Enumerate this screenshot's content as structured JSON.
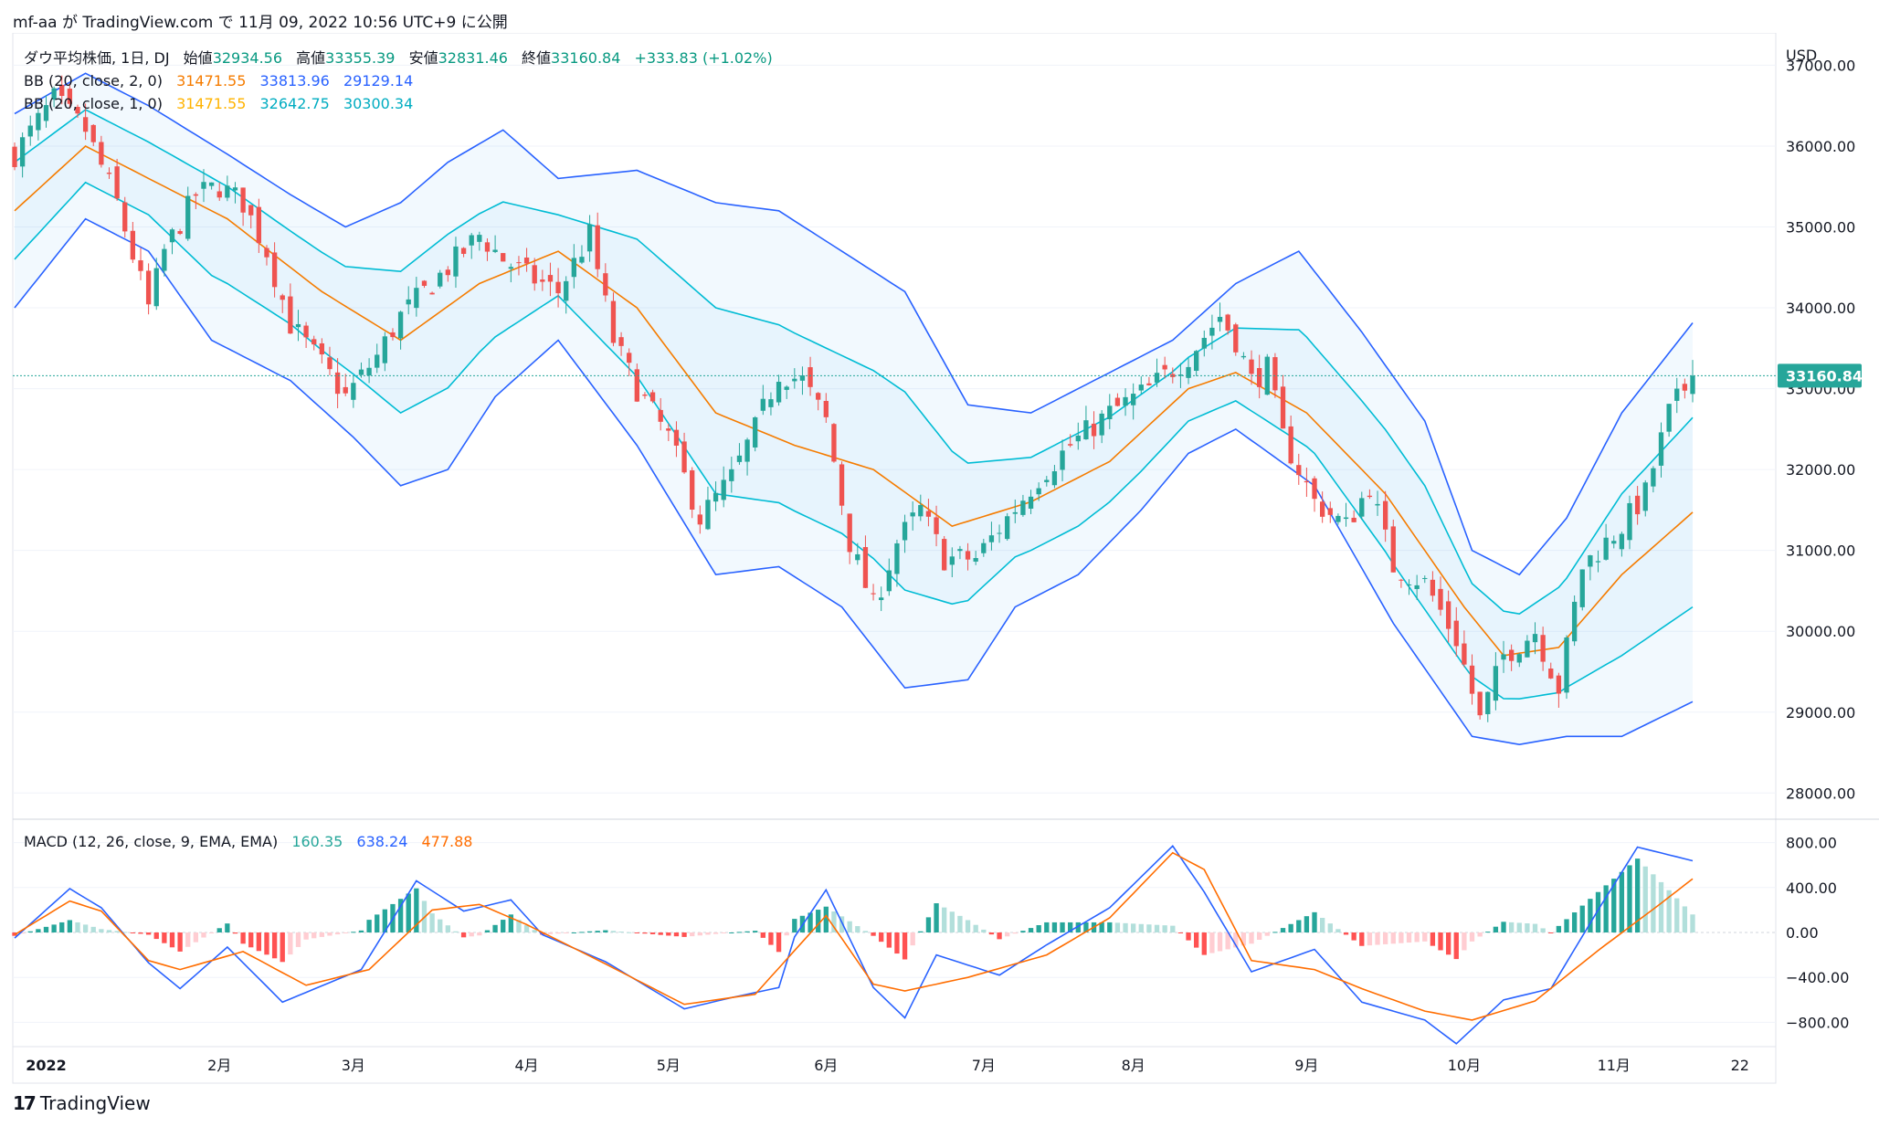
{
  "header": {
    "text": "mf-aa が TradingView.com で 11月 09, 2022 10:56 UTC+9 に公開"
  },
  "footer": {
    "brand": "TradingView"
  },
  "colors": {
    "up": "#26a69a",
    "down": "#ef5350",
    "bb2": "#2962ff",
    "bb1": "#00bcd4",
    "basis": "#f57c00",
    "macd": "#2962ff",
    "signal": "#ff6d00",
    "hist_up_strong": "#26a69a",
    "hist_up_weak": "#b2dfdb",
    "hist_down_strong": "#ff5252",
    "hist_down_weak": "#ffcdd2"
  },
  "legend": {
    "title": "ダウ平均株価, 1日, DJ",
    "open_label": "始値",
    "open": "32934.56",
    "high_label": "高値",
    "high": "33355.39",
    "low_label": "安値",
    "low": "32831.46",
    "close_label": "終値",
    "close": "33160.84",
    "change": "+333.83 (+1.02%)",
    "bb2_label": "BB (20, close, 2, 0)",
    "bb2_basis": "31471.55",
    "bb2_upper": "33813.96",
    "bb2_lower": "29129.14",
    "bb1_label": "BB (20, close, 1, 0)",
    "bb1_basis": "31471.55",
    "bb1_upper": "32642.75",
    "bb1_lower": "30300.34",
    "macd_label": "MACD (12, 26, close, 9, EMA, EMA)",
    "macd_hist": "160.35",
    "macd_line": "638.24",
    "macd_signal": "477.88"
  },
  "price_axis": {
    "currency": "USD",
    "ticks": [
      "37000.00",
      "36000.00",
      "35000.00",
      "34000.00",
      "33000.00",
      "32000.00",
      "31000.00",
      "30000.00",
      "29000.00",
      "28000.00"
    ],
    "last_price": "33160.84"
  },
  "macd_axis": {
    "ticks": [
      "800.00",
      "400.00",
      "0.00",
      "−400.00",
      "−800.00"
    ]
  },
  "time_axis": {
    "labels": [
      "2022",
      "2月",
      "3月",
      "4月",
      "5月",
      "6月",
      "7月",
      "8月",
      "9月",
      "10月",
      "11月",
      "22"
    ]
  },
  "chart_data": {
    "type": "candlestick",
    "symbol": "DJ",
    "interval": "1D",
    "price_range": [
      27800,
      37400
    ],
    "close_path": [
      [
        1,
        35900
      ],
      [
        6,
        36580
      ],
      [
        10,
        36200
      ],
      [
        14,
        35300
      ],
      [
        18,
        34000
      ],
      [
        20,
        34700
      ],
      [
        24,
        35400
      ],
      [
        27,
        35500
      ],
      [
        30,
        35300
      ],
      [
        33,
        34700
      ],
      [
        36,
        33800
      ],
      [
        40,
        33300
      ],
      [
        43,
        32900
      ],
      [
        47,
        33400
      ],
      [
        50,
        33900
      ],
      [
        55,
        34400
      ],
      [
        60,
        34900
      ],
      [
        63,
        34600
      ],
      [
        66,
        34400
      ],
      [
        70,
        34200
      ],
      [
        74,
        34900
      ],
      [
        77,
        33600
      ],
      [
        80,
        33000
      ],
      [
        84,
        32400
      ],
      [
        88,
        31400
      ],
      [
        92,
        31900
      ],
      [
        95,
        32500
      ],
      [
        98,
        33200
      ],
      [
        101,
        33100
      ],
      [
        104,
        32600
      ],
      [
        107,
        31100
      ],
      [
        110,
        30300
      ],
      [
        113,
        31100
      ],
      [
        116,
        31500
      ],
      [
        119,
        30900
      ],
      [
        123,
        30900
      ],
      [
        127,
        31400
      ],
      [
        131,
        31900
      ],
      [
        135,
        32300
      ],
      [
        140,
        32700
      ],
      [
        145,
        33000
      ],
      [
        150,
        33400
      ],
      [
        154,
        33900
      ],
      [
        156,
        33600
      ],
      [
        158,
        33100
      ],
      [
        160,
        33250
      ],
      [
        162,
        32400
      ],
      [
        166,
        31600
      ],
      [
        170,
        31300
      ],
      [
        173,
        31800
      ],
      [
        176,
        30800
      ],
      [
        180,
        30600
      ],
      [
        184,
        29900
      ],
      [
        187,
        28900
      ],
      [
        190,
        29700
      ],
      [
        194,
        30000
      ],
      [
        197,
        29300
      ],
      [
        200,
        30800
      ],
      [
        205,
        31300
      ],
      [
        208,
        31700
      ],
      [
        211,
        32700
      ],
      [
        214,
        33160.84
      ]
    ],
    "bb_basis_path": [
      [
        1,
        35200
      ],
      [
        10,
        36000
      ],
      [
        18,
        35600
      ],
      [
        28,
        35100
      ],
      [
        40,
        34200
      ],
      [
        50,
        33600
      ],
      [
        60,
        34300
      ],
      [
        70,
        34700
      ],
      [
        80,
        34000
      ],
      [
        90,
        32700
      ],
      [
        100,
        32300
      ],
      [
        110,
        32000
      ],
      [
        120,
        31300
      ],
      [
        130,
        31600
      ],
      [
        140,
        32100
      ],
      [
        150,
        33000
      ],
      [
        156,
        33200
      ],
      [
        165,
        32700
      ],
      [
        175,
        31700
      ],
      [
        185,
        30300
      ],
      [
        190,
        29700
      ],
      [
        197,
        29800
      ],
      [
        205,
        30700
      ],
      [
        214,
        31471.55
      ]
    ],
    "bb_k2_upper_path": [
      [
        1,
        36400
      ],
      [
        10,
        36900
      ],
      [
        18,
        36500
      ],
      [
        28,
        35900
      ],
      [
        36,
        35400
      ],
      [
        43,
        35000
      ],
      [
        50,
        35300
      ],
      [
        56,
        35800
      ],
      [
        63,
        36200
      ],
      [
        70,
        35600
      ],
      [
        80,
        35700
      ],
      [
        90,
        35300
      ],
      [
        98,
        35200
      ],
      [
        106,
        34700
      ],
      [
        114,
        34200
      ],
      [
        122,
        32800
      ],
      [
        130,
        32700
      ],
      [
        138,
        33100
      ],
      [
        148,
        33600
      ],
      [
        156,
        34300
      ],
      [
        164,
        34700
      ],
      [
        172,
        33700
      ],
      [
        180,
        32600
      ],
      [
        186,
        31000
      ],
      [
        192,
        30700
      ],
      [
        198,
        31400
      ],
      [
        205,
        32700
      ],
      [
        214,
        33813.96
      ]
    ],
    "bb_k2_lower_path": [
      [
        1,
        34000
      ],
      [
        10,
        35100
      ],
      [
        18,
        34700
      ],
      [
        26,
        33600
      ],
      [
        36,
        33100
      ],
      [
        44,
        32400
      ],
      [
        50,
        31800
      ],
      [
        56,
        32000
      ],
      [
        62,
        32900
      ],
      [
        70,
        33600
      ],
      [
        80,
        32300
      ],
      [
        90,
        30700
      ],
      [
        98,
        30800
      ],
      [
        106,
        30300
      ],
      [
        114,
        29300
      ],
      [
        122,
        29400
      ],
      [
        128,
        30300
      ],
      [
        136,
        30700
      ],
      [
        144,
        31500
      ],
      [
        150,
        32200
      ],
      [
        156,
        32500
      ],
      [
        166,
        31800
      ],
      [
        176,
        30100
      ],
      [
        186,
        28700
      ],
      [
        192,
        28600
      ],
      [
        198,
        28700
      ],
      [
        205,
        28700
      ],
      [
        214,
        29129.14
      ]
    ],
    "macd_range": [
      -1000,
      1000
    ],
    "macd_path": [
      [
        1,
        -50
      ],
      [
        8,
        390
      ],
      [
        12,
        220
      ],
      [
        18,
        -270
      ],
      [
        22,
        -500
      ],
      [
        28,
        -130
      ],
      [
        35,
        -620
      ],
      [
        45,
        -330
      ],
      [
        52,
        460
      ],
      [
        58,
        190
      ],
      [
        64,
        290
      ],
      [
        68,
        -20
      ],
      [
        76,
        -260
      ],
      [
        86,
        -680
      ],
      [
        92,
        -580
      ],
      [
        98,
        -490
      ],
      [
        100,
        -40
      ],
      [
        104,
        380
      ],
      [
        110,
        -490
      ],
      [
        114,
        -760
      ],
      [
        118,
        -200
      ],
      [
        126,
        -380
      ],
      [
        132,
        -110
      ],
      [
        140,
        220
      ],
      [
        148,
        770
      ],
      [
        152,
        360
      ],
      [
        158,
        -350
      ],
      [
        166,
        -150
      ],
      [
        172,
        -620
      ],
      [
        180,
        -780
      ],
      [
        184,
        -990
      ],
      [
        190,
        -600
      ],
      [
        196,
        -500
      ],
      [
        202,
        200
      ],
      [
        207,
        760
      ],
      [
        214,
        638.24
      ]
    ],
    "signal_path": [
      [
        1,
        -20
      ],
      [
        8,
        280
      ],
      [
        12,
        190
      ],
      [
        18,
        -250
      ],
      [
        22,
        -330
      ],
      [
        30,
        -170
      ],
      [
        38,
        -470
      ],
      [
        46,
        -330
      ],
      [
        54,
        200
      ],
      [
        60,
        250
      ],
      [
        66,
        70
      ],
      [
        76,
        -280
      ],
      [
        86,
        -640
      ],
      [
        95,
        -550
      ],
      [
        104,
        150
      ],
      [
        110,
        -460
      ],
      [
        114,
        -520
      ],
      [
        122,
        -400
      ],
      [
        132,
        -200
      ],
      [
        140,
        130
      ],
      [
        148,
        710
      ],
      [
        152,
        560
      ],
      [
        158,
        -250
      ],
      [
        166,
        -330
      ],
      [
        172,
        -500
      ],
      [
        180,
        -700
      ],
      [
        186,
        -780
      ],
      [
        194,
        -610
      ],
      [
        202,
        -160
      ],
      [
        210,
        260
      ],
      [
        214,
        477.88
      ]
    ],
    "hist_final": 160.35
  }
}
